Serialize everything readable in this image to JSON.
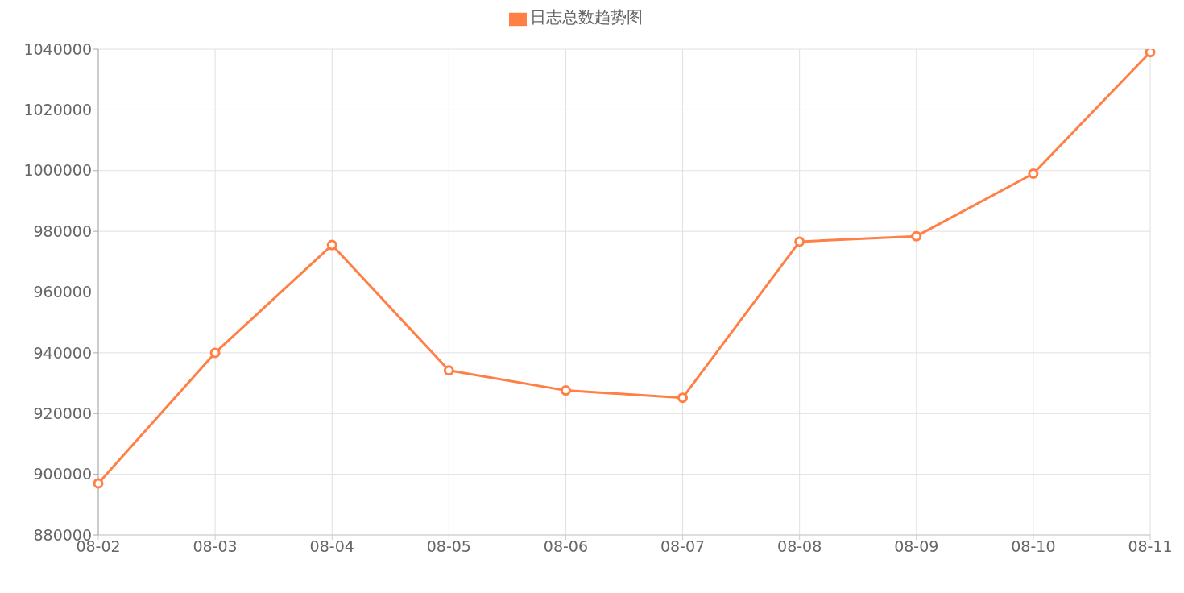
{
  "chart_data": {
    "type": "line",
    "categories": [
      "08-02",
      "08-03",
      "08-04",
      "08-05",
      "08-06",
      "08-07",
      "08-08",
      "08-09",
      "08-10",
      "08-11"
    ],
    "series": [
      {
        "name": "日志总数趋势图",
        "color": "#ff7f45",
        "values": [
          897000,
          940000,
          975500,
          934200,
          927600,
          925200,
          976600,
          978400,
          999000,
          1039000
        ]
      }
    ],
    "ylim": [
      880000,
      1040000
    ],
    "yticks": [
      880000,
      900000,
      920000,
      940000,
      960000,
      980000,
      1000000,
      1020000,
      1040000
    ],
    "grid": true,
    "legend": "top",
    "marker": "circle",
    "line_style": "solid"
  }
}
